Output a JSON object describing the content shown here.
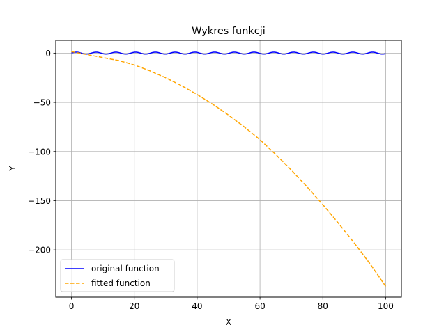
{
  "chart_data": {
    "type": "line",
    "title": "Wykres funkcji",
    "xlabel": "X",
    "ylabel": "Y",
    "xlim": [
      -5,
      105
    ],
    "ylim": [
      -248,
      13
    ],
    "xticks": [
      0,
      20,
      40,
      60,
      80,
      100
    ],
    "xtick_labels": [
      "0",
      "20",
      "40",
      "60",
      "80",
      "100"
    ],
    "yticks": [
      0,
      -50,
      -100,
      -150,
      -200
    ],
    "ytick_labels": [
      "0",
      "−50",
      "−100",
      "−150",
      "−200"
    ],
    "grid": true,
    "legend_position": "bottom-left",
    "series": [
      {
        "name": "original function",
        "color": "#0000ff",
        "linestyle": "solid",
        "formula": "sin(x)",
        "x_range": [
          0,
          100
        ]
      },
      {
        "name": "fitted function",
        "color": "#ffa500",
        "linestyle": "dashed",
        "x": [
          0,
          5,
          10,
          15,
          20,
          25,
          30,
          35,
          40,
          45,
          50,
          55,
          60,
          65,
          70,
          75,
          80,
          85,
          90,
          95,
          100
        ],
        "y": [
          1.5,
          -1.5,
          -4.5,
          -7.5,
          -12,
          -18,
          -25,
          -33,
          -42,
          -52,
          -63,
          -75,
          -88,
          -103,
          -119,
          -136,
          -154,
          -173,
          -193,
          -214,
          -237
        ]
      }
    ]
  }
}
